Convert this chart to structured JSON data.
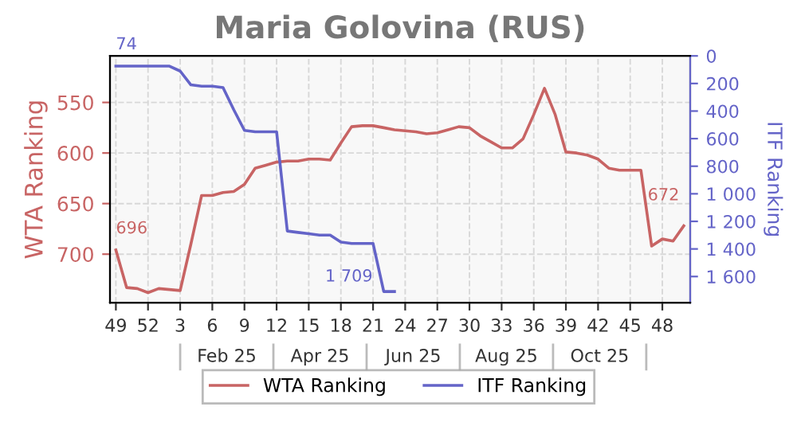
{
  "chart_data": {
    "type": "line",
    "title": "Maria Golovina (RUS)",
    "ylabel": "WTA Ranking",
    "y2label": "ITF Ranking",
    "categories": [
      "49",
      null,
      null,
      "52",
      null,
      null,
      "3",
      null,
      null,
      "6",
      null,
      null,
      "9",
      null,
      null,
      "12",
      null,
      null,
      "15",
      null,
      null,
      "18",
      null,
      null,
      "21",
      null,
      null,
      "24",
      null,
      null,
      "27",
      null,
      null,
      "30",
      null,
      null,
      "33",
      null,
      null,
      "36",
      null,
      null,
      "39",
      null,
      null,
      "42",
      null,
      null,
      "45",
      null,
      null,
      "48",
      null,
      null
    ],
    "series": [
      {
        "name": "WTA Ranking",
        "color": "#c86464",
        "axis": "y",
        "values": [
          696,
          733,
          734,
          738,
          734,
          735,
          736,
          690,
          642,
          642,
          639,
          638,
          631,
          615,
          612,
          609,
          608,
          608,
          606,
          606,
          607,
          590,
          574,
          573,
          573,
          575,
          577,
          578,
          579,
          581,
          580,
          577,
          574,
          575,
          583,
          589,
          595,
          595,
          586,
          562,
          536,
          562,
          599,
          600,
          602,
          606,
          615,
          617,
          617,
          617,
          692,
          685,
          687,
          672
        ],
        "value_labels": [
          "696",
          null,
          null,
          null,
          null,
          null,
          null,
          null,
          null,
          null,
          null,
          null,
          null,
          null,
          null,
          null,
          null,
          null,
          null,
          null,
          null,
          null,
          null,
          null,
          null,
          null,
          null,
          null,
          null,
          null,
          null,
          null,
          null,
          null,
          null,
          null,
          null,
          null,
          null,
          null,
          null,
          null,
          null,
          null,
          null,
          null,
          null,
          null,
          null,
          null,
          null,
          null,
          null,
          "672"
        ]
      },
      {
        "name": "ITF Ranking",
        "color": "#6464c8",
        "axis": "y2",
        "values": [
          74,
          74,
          74,
          74,
          74,
          74,
          110,
          210,
          220,
          220,
          230,
          390,
          540,
          550,
          550,
          550,
          1270,
          1280,
          1290,
          1300,
          1300,
          1350,
          1360,
          1360,
          1360,
          1709,
          1709,
          null,
          null,
          null,
          null,
          null,
          null,
          null,
          null,
          null,
          null,
          null,
          null,
          null,
          null,
          null,
          null,
          null,
          null,
          null,
          null,
          null,
          null,
          null,
          null,
          null,
          null,
          null
        ],
        "value_labels": [
          "74",
          null,
          null,
          null,
          null,
          null,
          null,
          null,
          null,
          null,
          null,
          null,
          null,
          null,
          null,
          null,
          null,
          null,
          null,
          null,
          null,
          null,
          null,
          null,
          null,
          "1 709",
          null,
          null,
          null,
          null,
          null,
          null,
          null,
          null,
          null,
          null,
          null,
          null,
          null,
          null,
          null,
          null,
          null,
          null,
          null,
          null,
          null,
          null,
          null,
          null,
          null,
          null,
          null,
          null
        ]
      }
    ],
    "annotations": [
      "Feb 25",
      "Apr 25",
      "Jun 25",
      "Aug 25",
      "Oct 25"
    ],
    "ylim": [
      748,
      504
    ],
    "yticks": [
      550,
      600,
      650,
      700
    ],
    "y2lim": [
      1790,
      0
    ],
    "y2ticks": [
      0,
      200,
      400,
      600,
      800,
      {
        "value": 1000,
        "label": "1 000"
      },
      {
        "value": 1200,
        "label": "1 200"
      },
      {
        "value": 1400,
        "label": "1 400"
      },
      {
        "value": 1600,
        "label": "1 600"
      }
    ],
    "grid": true,
    "legend": "bottom",
    "marker": "none",
    "line_style": "solid"
  }
}
